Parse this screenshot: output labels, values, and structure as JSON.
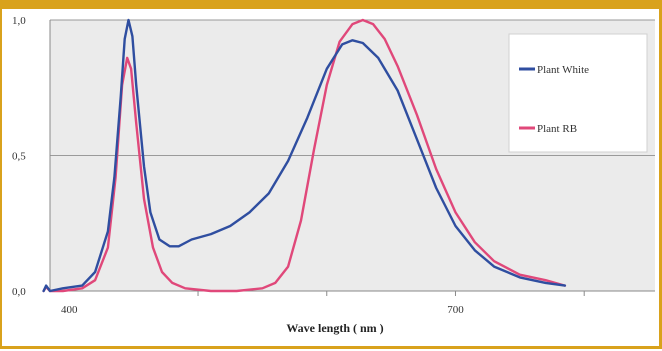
{
  "chart_data": {
    "type": "line",
    "title": "",
    "xlabel": "Wave length ( nm )",
    "ylabel": "",
    "xlim": [
      385,
      855
    ],
    "ylim": [
      0,
      1.0
    ],
    "x_ticks": [
      {
        "value": 400,
        "label": "400"
      },
      {
        "value": 700,
        "label": "700"
      }
    ],
    "y_ticks": [
      {
        "value": 0.0,
        "label": "0,0"
      },
      {
        "value": 0.5,
        "label": "0,5"
      },
      {
        "value": 1.0,
        "label": "1,0"
      }
    ],
    "grid": true,
    "legend_position": "right",
    "series": [
      {
        "name": "Plant White",
        "color": "#2f4ea0",
        "points": [
          [
            380,
            0.0
          ],
          [
            382,
            0.02
          ],
          [
            385,
            0.0
          ],
          [
            395,
            0.01
          ],
          [
            410,
            0.02
          ],
          [
            420,
            0.07
          ],
          [
            430,
            0.22
          ],
          [
            435,
            0.42
          ],
          [
            440,
            0.72
          ],
          [
            443,
            0.93
          ],
          [
            446,
            1.0
          ],
          [
            449,
            0.94
          ],
          [
            452,
            0.76
          ],
          [
            458,
            0.46
          ],
          [
            463,
            0.29
          ],
          [
            470,
            0.19
          ],
          [
            478,
            0.165
          ],
          [
            485,
            0.165
          ],
          [
            495,
            0.19
          ],
          [
            510,
            0.21
          ],
          [
            525,
            0.24
          ],
          [
            540,
            0.29
          ],
          [
            555,
            0.36
          ],
          [
            570,
            0.48
          ],
          [
            585,
            0.64
          ],
          [
            600,
            0.82
          ],
          [
            612,
            0.91
          ],
          [
            620,
            0.925
          ],
          [
            628,
            0.915
          ],
          [
            640,
            0.86
          ],
          [
            655,
            0.74
          ],
          [
            670,
            0.56
          ],
          [
            685,
            0.38
          ],
          [
            700,
            0.24
          ],
          [
            715,
            0.15
          ],
          [
            730,
            0.09
          ],
          [
            750,
            0.05
          ],
          [
            770,
            0.03
          ],
          [
            785,
            0.02
          ]
        ]
      },
      {
        "name": "Plant RB",
        "color": "#e0487a",
        "points": [
          [
            380,
            0.0
          ],
          [
            382,
            0.015
          ],
          [
            385,
            0.0
          ],
          [
            395,
            0.0
          ],
          [
            410,
            0.01
          ],
          [
            420,
            0.04
          ],
          [
            430,
            0.16
          ],
          [
            436,
            0.42
          ],
          [
            441,
            0.76
          ],
          [
            445,
            0.86
          ],
          [
            448,
            0.82
          ],
          [
            452,
            0.62
          ],
          [
            458,
            0.34
          ],
          [
            465,
            0.16
          ],
          [
            472,
            0.07
          ],
          [
            480,
            0.03
          ],
          [
            490,
            0.01
          ],
          [
            510,
            0.0
          ],
          [
            530,
            0.0
          ],
          [
            550,
            0.01
          ],
          [
            560,
            0.03
          ],
          [
            570,
            0.09
          ],
          [
            580,
            0.26
          ],
          [
            590,
            0.52
          ],
          [
            600,
            0.76
          ],
          [
            610,
            0.92
          ],
          [
            620,
            0.985
          ],
          [
            628,
            1.0
          ],
          [
            636,
            0.985
          ],
          [
            645,
            0.93
          ],
          [
            655,
            0.83
          ],
          [
            670,
            0.65
          ],
          [
            685,
            0.45
          ],
          [
            700,
            0.29
          ],
          [
            715,
            0.18
          ],
          [
            730,
            0.11
          ],
          [
            750,
            0.06
          ],
          [
            770,
            0.04
          ],
          [
            785,
            0.02
          ]
        ]
      }
    ]
  }
}
